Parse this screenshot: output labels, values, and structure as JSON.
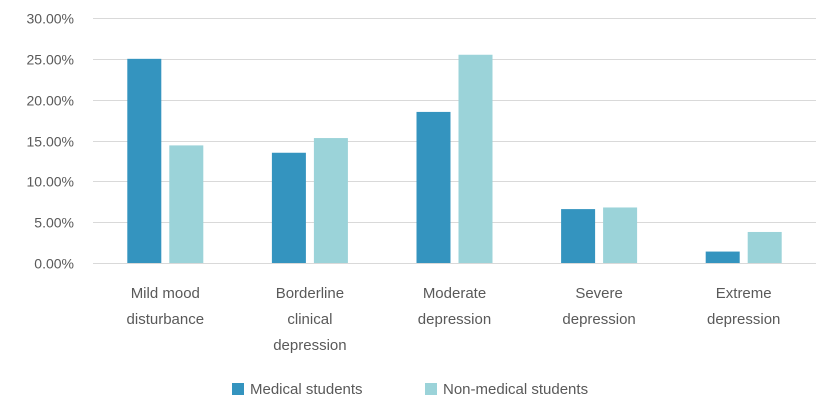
{
  "chart_data": {
    "type": "bar",
    "categories": [
      [
        "Mild mood",
        "disturbance"
      ],
      [
        "Borderline",
        "clinical",
        "depression"
      ],
      [
        "Moderate",
        "depression"
      ],
      [
        "Severe",
        "depression"
      ],
      [
        "Extreme",
        "depression"
      ]
    ],
    "series": [
      {
        "name": "Medical students",
        "color": "#3494bf",
        "values": [
          25.0,
          13.5,
          18.5,
          6.6,
          1.4
        ]
      },
      {
        "name": "Non-medical students",
        "color": "#9bd3d9",
        "values": [
          14.4,
          15.3,
          25.5,
          6.8,
          3.8
        ]
      }
    ],
    "ylim": [
      0,
      30
    ],
    "yticks": [
      "0.00%",
      "5.00%",
      "10.00%",
      "15.00%",
      "20.00%",
      "25.00%",
      "30.00%"
    ],
    "grid": true,
    "legend_position": "bottom"
  }
}
